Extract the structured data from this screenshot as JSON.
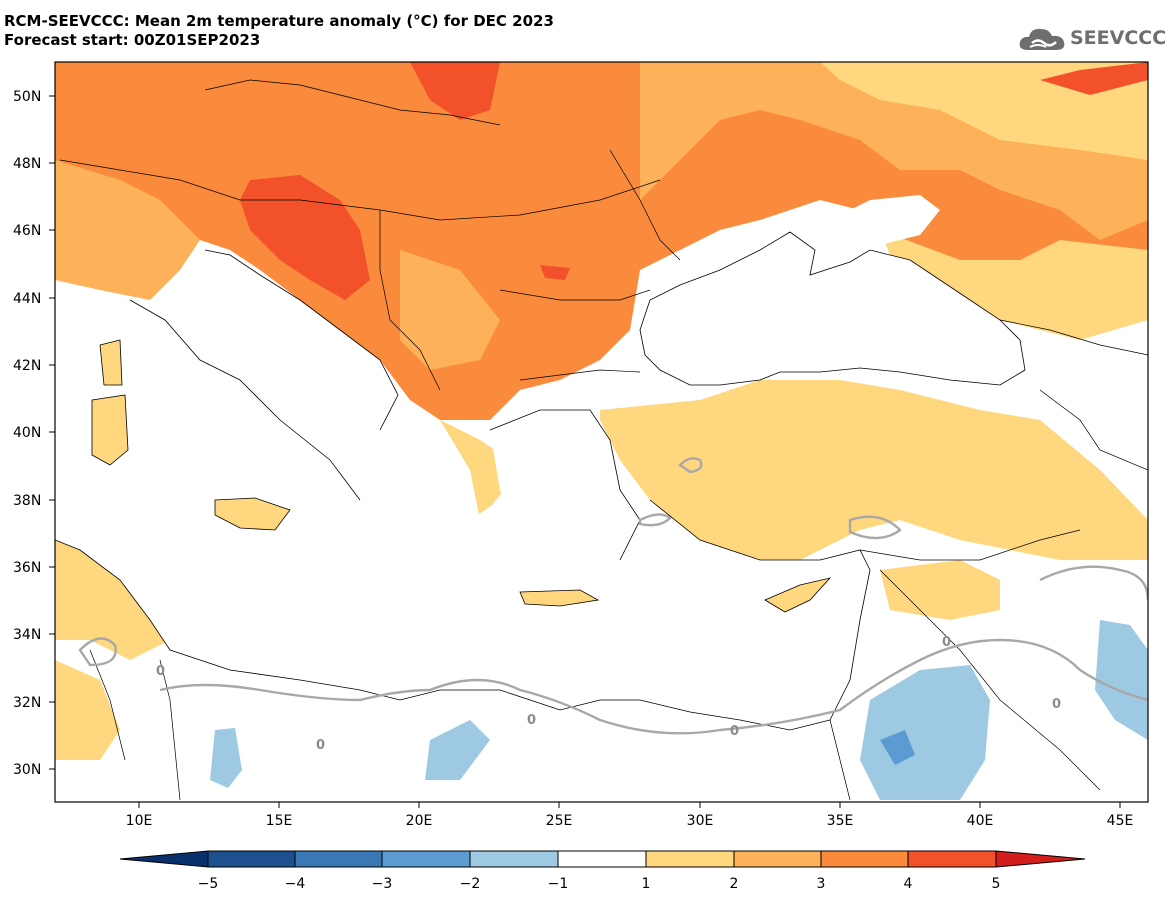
{
  "header": {
    "title": "RCM-SEEVCCC: Mean 2m temperature anomaly (°C) for DEC 2023",
    "subtitle": "Forecast start: 00Z01SEP2023"
  },
  "logo": {
    "text": "SEEVCCC",
    "icon": "cloud-icon"
  },
  "map": {
    "lat_range": [
      29,
      51
    ],
    "lon_range": [
      7,
      46
    ],
    "lat_labels": [
      "30N",
      "32N",
      "34N",
      "36N",
      "38N",
      "40N",
      "42N",
      "44N",
      "46N",
      "48N",
      "50N"
    ],
    "lon_labels": [
      "10E",
      "15E",
      "20E",
      "25E",
      "30E",
      "35E",
      "40E",
      "45E"
    ],
    "contour_label": "0"
  },
  "colorbar": {
    "labels": [
      "−5",
      "−4",
      "−3",
      "−2",
      "−1",
      "1",
      "2",
      "3",
      "4",
      "5"
    ],
    "colors": [
      "#1e4f8f",
      "#3a78b5",
      "#5b9bd1",
      "#9ec9e2",
      "#ffffff",
      "#ffd77f",
      "#fdb25a",
      "#fa8a3c",
      "#f2512a",
      "#d41e1e"
    ],
    "low_color": "#08306b",
    "high_color": "#c00000"
  }
}
